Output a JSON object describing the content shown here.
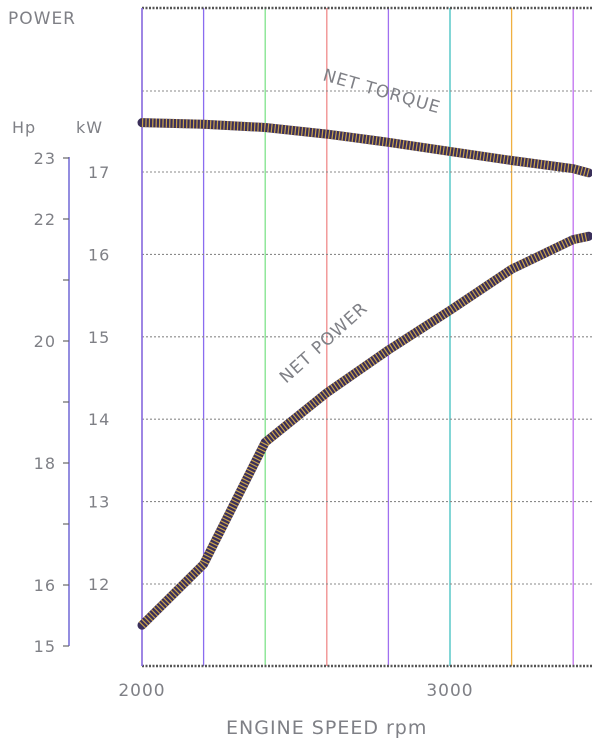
{
  "chart_data": {
    "type": "line",
    "title": "POWER",
    "xlabel": "ENGINE SPEED rpm",
    "x_tick_labels": [
      "2000",
      "3000"
    ],
    "xlim": [
      2000,
      3750
    ],
    "hp_axis": {
      "unit": "Hp",
      "labeled_ticks": [
        "23",
        "22",
        "20",
        "18",
        "16",
        "15"
      ],
      "ylim": [
        15,
        23
      ]
    },
    "kw_axis": {
      "unit": "kW",
      "ticks": [
        "17",
        "16",
        "15",
        "14",
        "13",
        "12"
      ],
      "ylim": [
        11.3,
        17.9
      ]
    },
    "grid": true,
    "vertical_grid_rpm": [
      2000,
      2200,
      2400,
      2600,
      2800,
      3000,
      3200,
      3400
    ],
    "vertical_grid_colors": [
      "#c9c900",
      "#8a6cf0",
      "#7fe38a",
      "#f08a8a",
      "#a070f0",
      "#40c0c0",
      "#f0b040",
      "#c070f0"
    ],
    "series": [
      {
        "name": "NET POWER",
        "unit": "kW",
        "x": [
          2000,
          2200,
          2400,
          2600,
          2800,
          3000,
          3200,
          3400,
          3450
        ],
        "y": [
          11.5,
          12.24,
          13.72,
          14.32,
          14.84,
          15.32,
          15.82,
          16.18,
          16.22
        ]
      },
      {
        "name": "NET TORQUE",
        "x": [
          2000,
          2200,
          2400,
          2600,
          2800,
          3000,
          3200,
          3400,
          3450
        ],
        "y": [
          17.6,
          17.58,
          17.54,
          17.46,
          17.36,
          17.25,
          17.14,
          17.04,
          16.99
        ]
      }
    ]
  }
}
